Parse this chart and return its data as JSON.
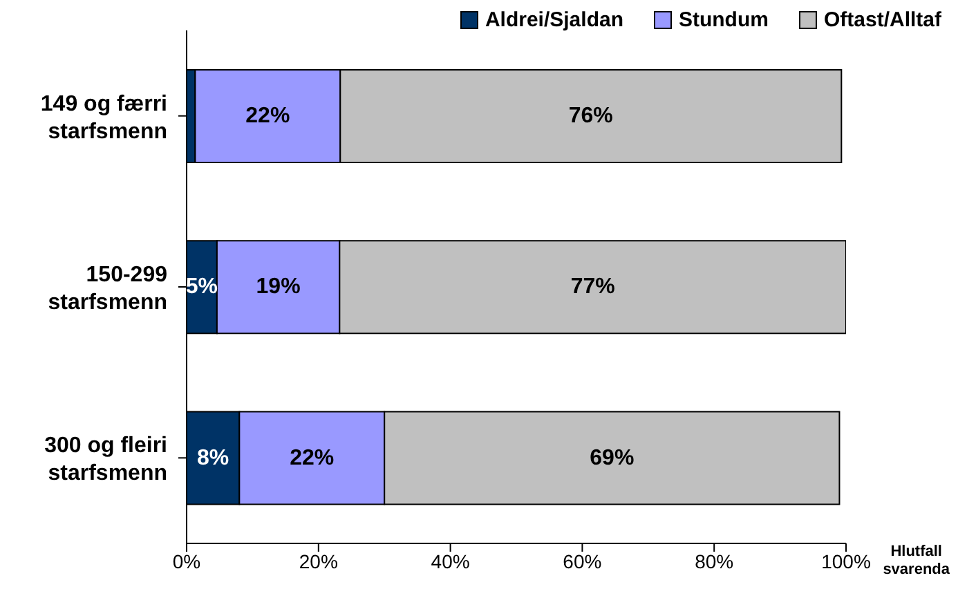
{
  "chart_data": {
    "type": "bar",
    "orientation": "horizontal",
    "stacked": true,
    "categories": [
      "149 og færri starfsmenn",
      "150-299 starfsmenn",
      "300 og fleiri starfsmenn"
    ],
    "series": [
      {
        "name": "Aldrei/Sjaldan",
        "color": "#003366",
        "values": [
          1.3,
          4.6,
          8
        ],
        "value_labels": [
          null,
          "5%",
          "8%"
        ]
      },
      {
        "name": "Stundum",
        "color": "#9999ff",
        "values": [
          22,
          18.6,
          22
        ],
        "value_labels": [
          "22%",
          "19%",
          "22%"
        ]
      },
      {
        "name": "Oftast/Alltaf",
        "color": "#c0c0c0",
        "values": [
          76,
          76.8,
          69
        ],
        "value_labels": [
          "76%",
          "77%",
          "69%"
        ]
      }
    ],
    "xlim": [
      0,
      100
    ],
    "xticks": [
      {
        "value": 0,
        "label": "0%"
      },
      {
        "value": 20,
        "label": "20%"
      },
      {
        "value": 40,
        "label": "40%"
      },
      {
        "value": 60,
        "label": "60%"
      },
      {
        "value": 80,
        "label": "80%"
      },
      {
        "value": 100,
        "label": "100%"
      }
    ],
    "xlabel": "Hlutfall svarenda",
    "legend": "top right",
    "grid": false
  }
}
